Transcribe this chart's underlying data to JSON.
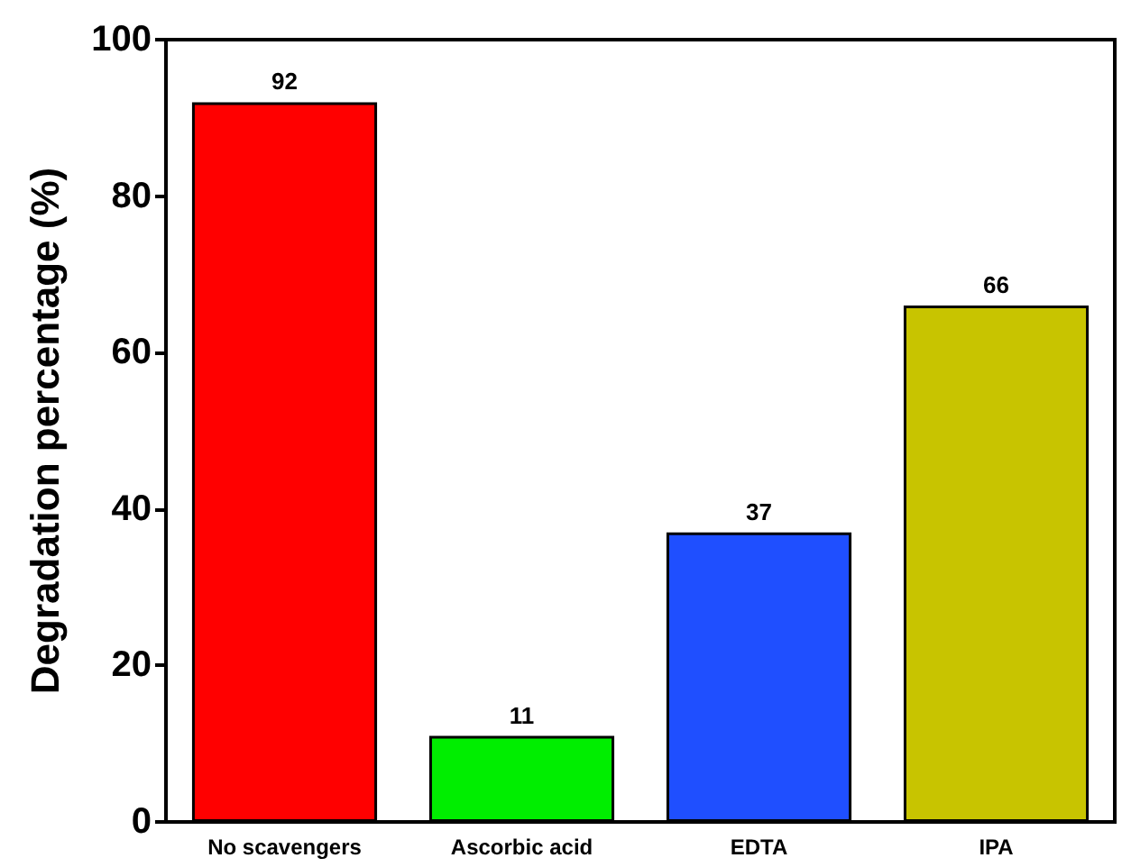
{
  "chart_data": {
    "type": "bar",
    "ylabel": "Degradation percentage (%)",
    "categories": [
      "No scavengers",
      "Ascorbic acid",
      "EDTA",
      "IPA"
    ],
    "values": [
      92,
      11,
      37,
      66
    ],
    "colors": [
      "#ff0000",
      "#00ee00",
      "#1f4fff",
      "#c8c400"
    ],
    "ylim": [
      0,
      100
    ],
    "yticks": [
      0,
      20,
      40,
      60,
      80,
      100
    ],
    "grid": false,
    "data_labels": true
  }
}
